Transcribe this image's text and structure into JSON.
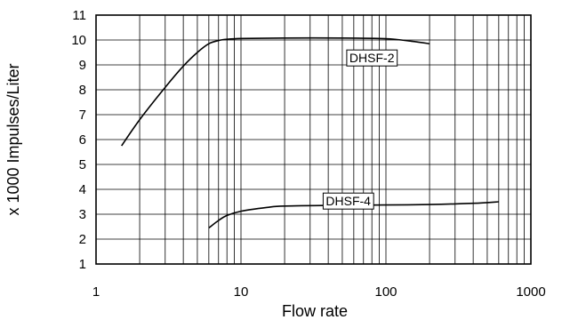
{
  "chart_data": {
    "type": "line",
    "title": "",
    "xlabel": "Flow rate",
    "ylabel": "x 1000 Impulses/Liter",
    "x_scale": "log",
    "xlim": [
      1,
      1000
    ],
    "ylim": [
      1,
      11
    ],
    "grid": true,
    "x_ticks": [
      "1",
      "10",
      "100",
      "1000"
    ],
    "y_ticks": [
      "1",
      "2",
      "3",
      "4",
      "5",
      "6",
      "7",
      "8",
      "9",
      "10",
      "11"
    ],
    "series": [
      {
        "name": "DHSF-2",
        "x": [
          1.5,
          2,
          3,
          4,
          5,
          6,
          7,
          8,
          10,
          20,
          50,
          100,
          150,
          200
        ],
        "y": [
          5.75,
          6.8,
          8.1,
          8.95,
          9.5,
          9.85,
          9.98,
          10.03,
          10.06,
          10.08,
          10.08,
          10.05,
          9.95,
          9.85
        ]
      },
      {
        "name": "DHSF-4",
        "x": [
          6,
          7,
          8,
          10,
          15,
          20,
          50,
          100,
          200,
          400,
          600
        ],
        "y": [
          2.45,
          2.75,
          2.95,
          3.12,
          3.27,
          3.33,
          3.36,
          3.37,
          3.39,
          3.44,
          3.5
        ]
      }
    ],
    "colors": {
      "line": "#000000",
      "grid": "#000000",
      "background": "#ffffff"
    }
  }
}
